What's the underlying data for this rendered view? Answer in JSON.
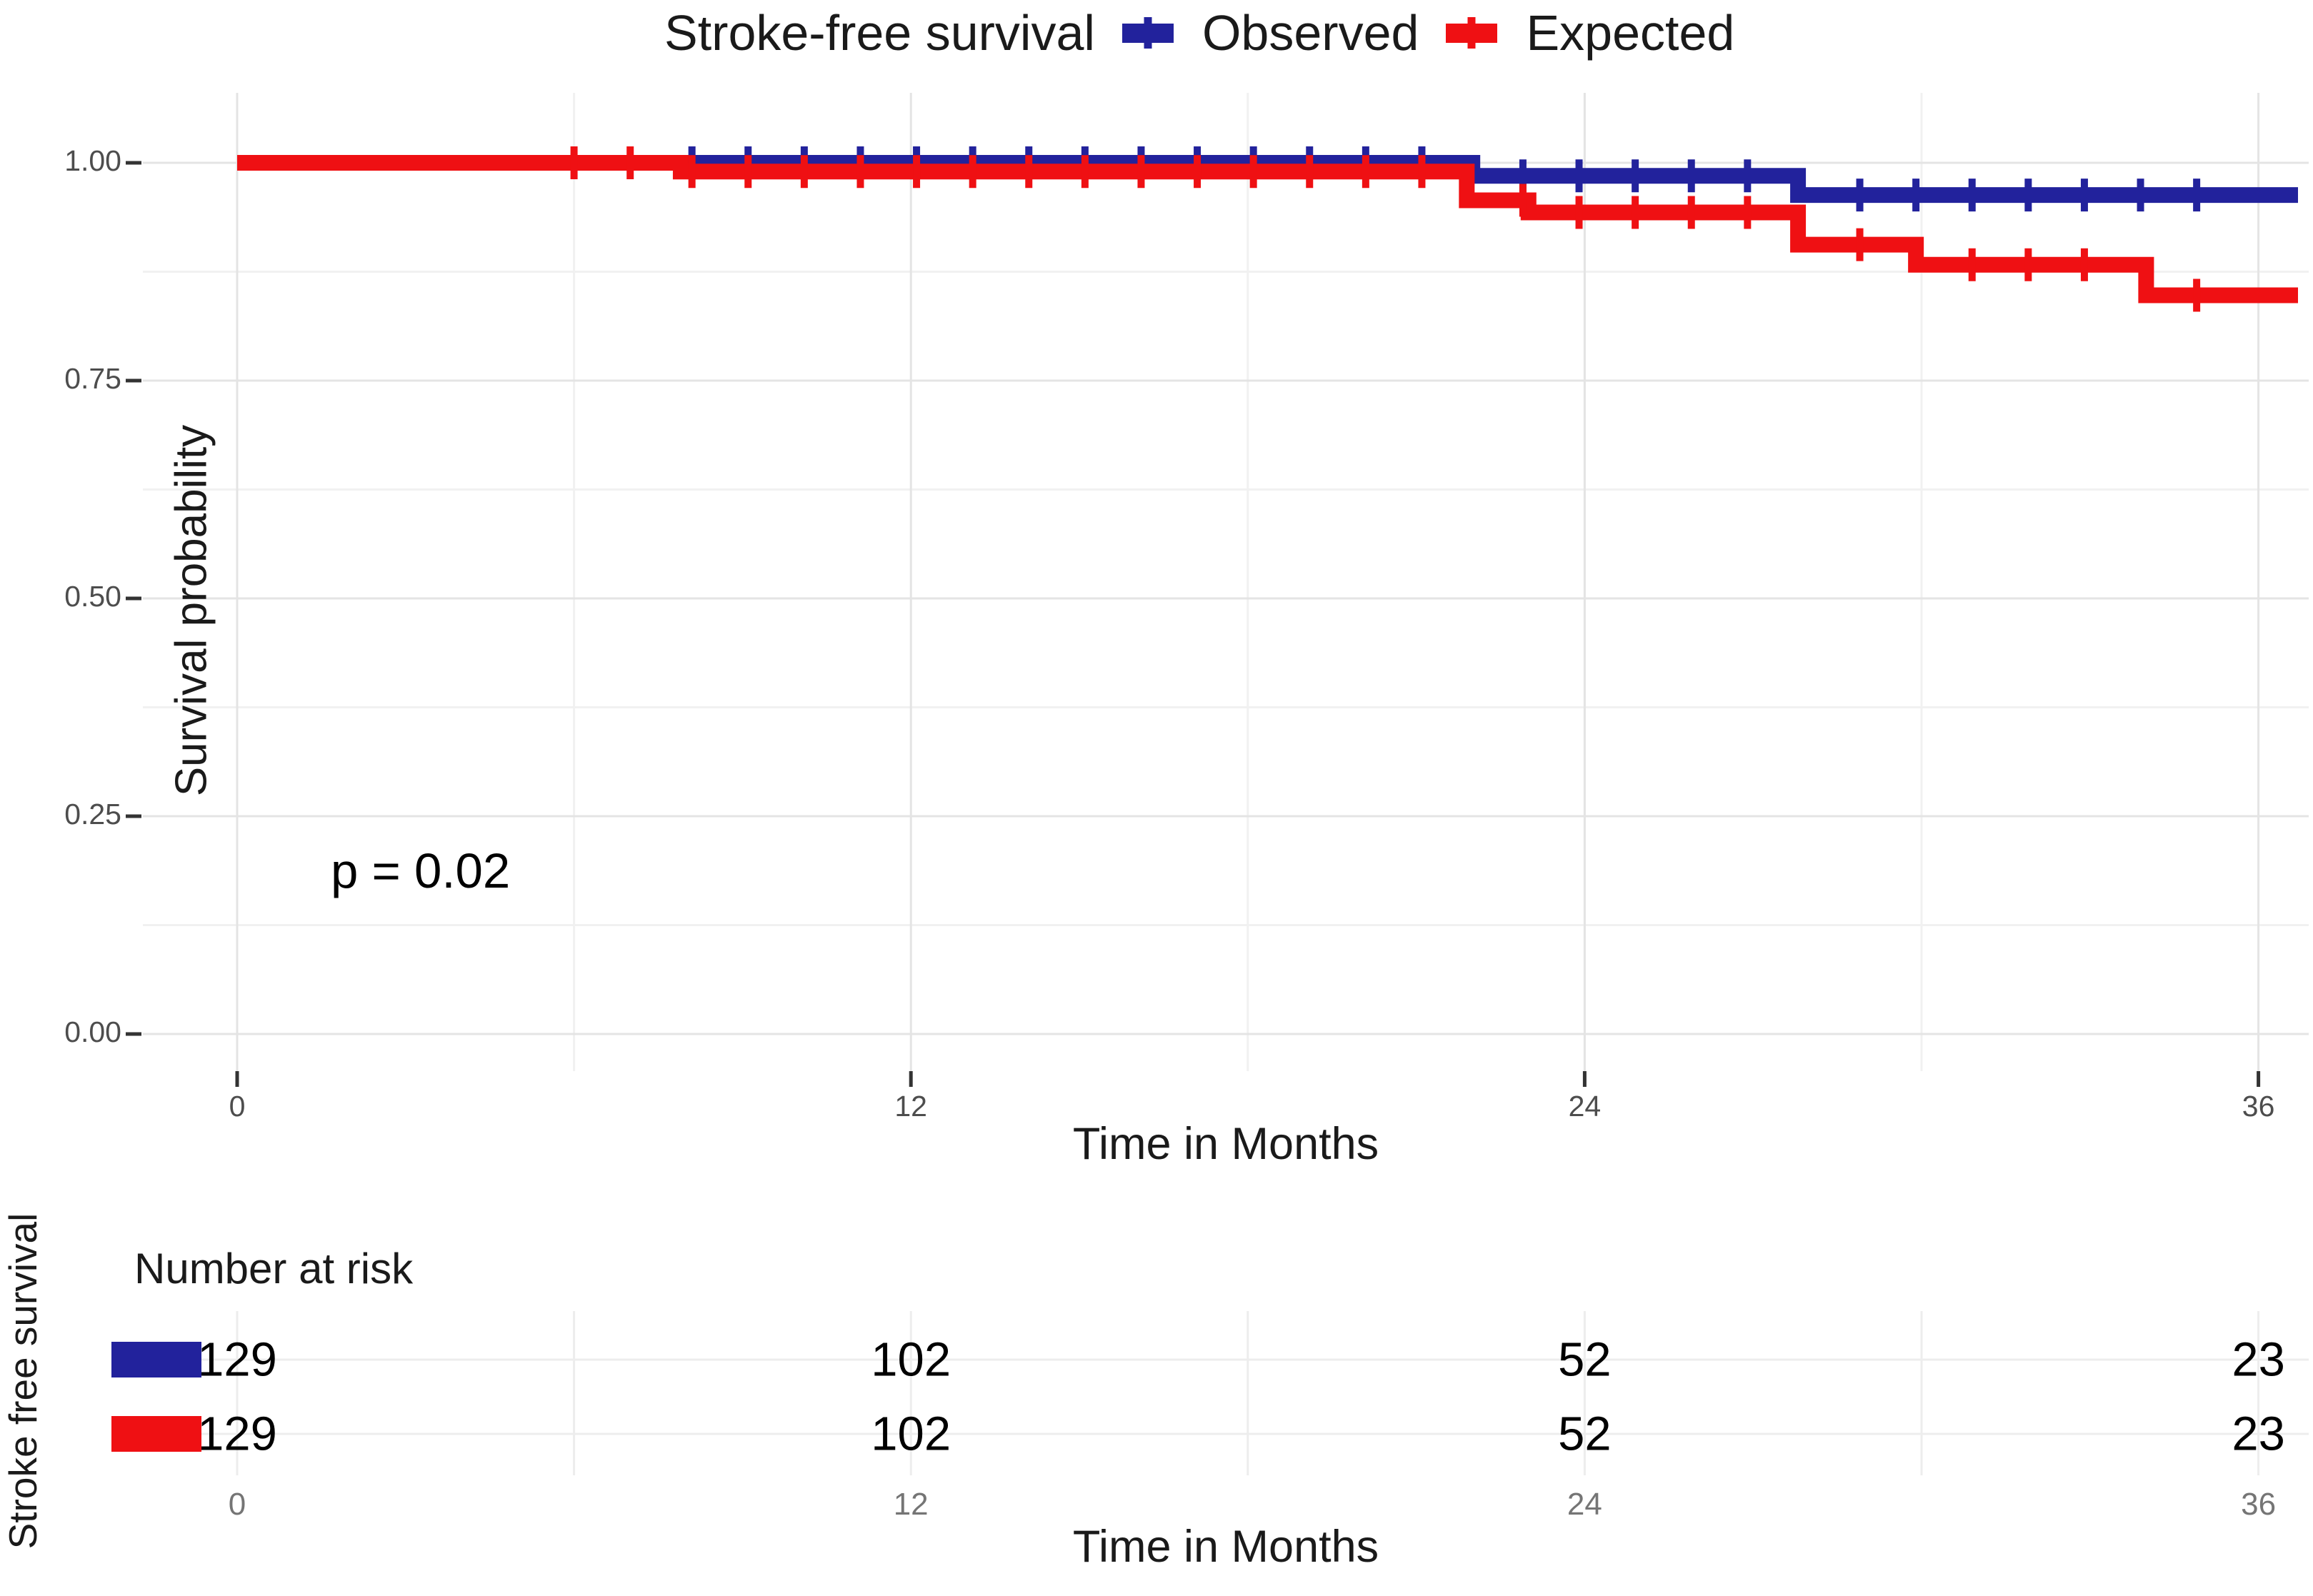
{
  "chart_data": {
    "type": "line",
    "chart_kind": "kaplan-meier-step-survival",
    "title": "Stroke-free survival",
    "xlabel": "Time in Months",
    "ylabel": "Survival probability",
    "pvalue_text": "p = 0.02",
    "legend_position": "top",
    "grid": true,
    "xlim": [
      0,
      36.7
    ],
    "ylim": [
      0,
      1
    ],
    "x_ticks": [
      0,
      12,
      24,
      36
    ],
    "y_tick_labels": [
      "0.00",
      "0.25",
      "0.50",
      "0.75",
      "1.00"
    ],
    "y_tick_values": [
      0,
      0.25,
      0.5,
      0.75,
      1.0
    ],
    "x_minor_gridlines": [
      6,
      18,
      30
    ],
    "y_minor_gridlines": [
      0.125,
      0.375,
      0.625,
      0.875
    ],
    "series": [
      {
        "name": "Observed",
        "color": "#22229c",
        "steps": [
          [
            0,
            1.0
          ],
          [
            22.0,
            0.985
          ],
          [
            27.8,
            0.963
          ]
        ],
        "end_time": 36.7,
        "censor_times": [
          8.1,
          9.1,
          10.1,
          11.1,
          12.1,
          13.1,
          14.1,
          15.1,
          16.1,
          17.1,
          18.1,
          19.1,
          20.1,
          21.1,
          22.9,
          23.9,
          24.9,
          25.9,
          26.9,
          28.9,
          29.9,
          30.9,
          31.9,
          32.9,
          33.9,
          34.9
        ]
      },
      {
        "name": "Expected",
        "color": "#ef1013",
        "steps": [
          [
            0,
            1.0
          ],
          [
            7.9,
            0.99
          ],
          [
            21.9,
            0.957
          ],
          [
            23.0,
            0.943
          ],
          [
            27.8,
            0.906
          ],
          [
            29.9,
            0.883
          ],
          [
            34.0,
            0.848
          ]
        ],
        "end_time": 36.7,
        "censor_times": [
          6.0,
          7.0,
          8.1,
          9.1,
          10.1,
          11.1,
          12.1,
          13.1,
          14.1,
          15.1,
          16.1,
          17.1,
          18.1,
          19.1,
          20.1,
          21.1,
          22.9,
          23.9,
          24.9,
          25.9,
          26.9,
          28.9,
          30.9,
          31.9,
          32.9,
          34.9
        ]
      }
    ],
    "risk_table": {
      "title": "Number at risk",
      "group_axis_label": "Stroke free survival",
      "xlabel": "Time in Months",
      "times": [
        0,
        12,
        24,
        36
      ],
      "rows": [
        {
          "name": "Observed",
          "color": "#22229c",
          "counts": [
            "129",
            "102",
            "52",
            "23"
          ]
        },
        {
          "name": "Expected",
          "color": "#ef1013",
          "counts": [
            "129",
            "102",
            "52",
            "23"
          ]
        }
      ]
    },
    "colors": {
      "observed": "#22229c",
      "expected": "#ef1013",
      "grid_major": "#e4e4e4",
      "grid_minor": "#f1f1f1",
      "axis_tick": "#333333",
      "tick_label": "#4d4d4d",
      "risk_axis_tick_label": "#757575",
      "text": "#1a1a1a"
    }
  }
}
